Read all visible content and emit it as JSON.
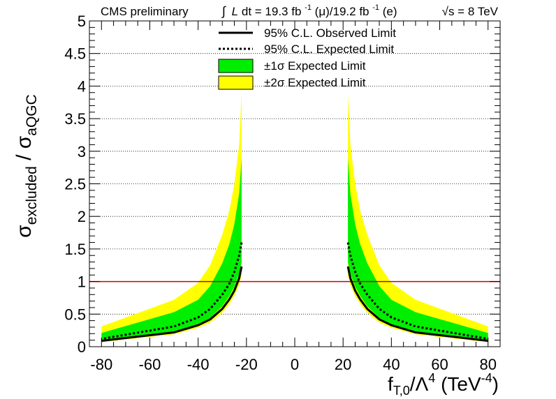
{
  "header": {
    "experiment": "CMS preliminary",
    "lumi_prefix": "∫",
    "lumi_L": "L",
    "lumi_dt": " dt = 19.3 fb",
    "lumi_exp1": "-1",
    "lumi_mu": "(μ)/19.2 fb",
    "lumi_exp2": "-1",
    "lumi_e": "(e)",
    "energy": "√s = 8 TeV"
  },
  "chart_data": {
    "type": "line",
    "xlabel_main": "f",
    "xlabel_sub": "T,0",
    "xlabel_rest": "/Λ",
    "xlabel_pow": "4",
    "xlabel_unit": " (TeV",
    "xlabel_unit_pow": "-4",
    "xlabel_close": ")",
    "ylabel_sigma1": "σ",
    "ylabel_sub1": "excluded",
    "ylabel_slash": " / ",
    "ylabel_sigma2": "σ",
    "ylabel_sub2": "aQGC",
    "xlim": [
      -85,
      85
    ],
    "ylim": [
      0,
      5
    ],
    "xticks": [
      -80,
      -60,
      -40,
      -20,
      0,
      20,
      40,
      60,
      80
    ],
    "xtick_labels": [
      "-80",
      "-60",
      "-40",
      "-20",
      "0",
      "20",
      "40",
      "60",
      "80"
    ],
    "yticks": [
      0,
      0.5,
      1,
      1.5,
      2,
      2.5,
      3,
      3.5,
      4,
      4.5,
      5
    ],
    "ytick_labels": [
      "0",
      "0.5",
      "1",
      "1.5",
      "2",
      "2.5",
      "3",
      "3.5",
      "4",
      "4.5",
      "5"
    ],
    "grid": "horizontal dotted",
    "reference_line": {
      "y": 1,
      "color": "#cc0000"
    },
    "legend_position": "top-center",
    "legend": [
      {
        "label": "95% C.L. Observed Limit",
        "style": "solid"
      },
      {
        "label": "95% C.L. Expected Limit",
        "style": "dotted"
      },
      {
        "label_pm": "±",
        "label_num": "1",
        "label_sigma": "σ",
        "label_rest": " Expected Limit",
        "style": "band",
        "color": "#00ee00"
      },
      {
        "label_pm": "±",
        "label_num": "2",
        "label_sigma": "σ",
        "label_rest": " Expected Limit",
        "style": "band",
        "color": "#ffff00"
      }
    ],
    "colors": {
      "band1": "#00ee00",
      "band2": "#ffff00",
      "line": "#000000"
    },
    "x_positive": [
      22,
      23,
      25,
      27,
      30,
      35,
      40,
      50,
      80
    ],
    "series": [
      {
        "name": "95% C.L. Observed Limit",
        "values": [
          1.23,
          1.05,
          0.86,
          0.73,
          0.58,
          0.42,
          0.33,
          0.22,
          0.09
        ]
      },
      {
        "name": "95% C.L. Expected Limit",
        "values": [
          1.6,
          1.4,
          1.15,
          0.97,
          0.8,
          0.58,
          0.45,
          0.31,
          0.12
        ]
      },
      {
        "name": "±1σ Expected Limit",
        "lower": [
          1.3,
          1.12,
          0.92,
          0.78,
          0.62,
          0.44,
          0.34,
          0.22,
          0.09
        ],
        "upper": [
          2.9,
          2.35,
          1.88,
          1.58,
          1.28,
          0.93,
          0.72,
          0.53,
          0.21
        ]
      },
      {
        "name": "±2σ Expected Limit",
        "lower": [
          1.1,
          0.95,
          0.78,
          0.66,
          0.52,
          0.37,
          0.29,
          0.19,
          0.07
        ],
        "upper": [
          3.9,
          3.1,
          2.5,
          2.1,
          1.72,
          1.25,
          0.98,
          0.72,
          0.31
        ]
      }
    ]
  }
}
